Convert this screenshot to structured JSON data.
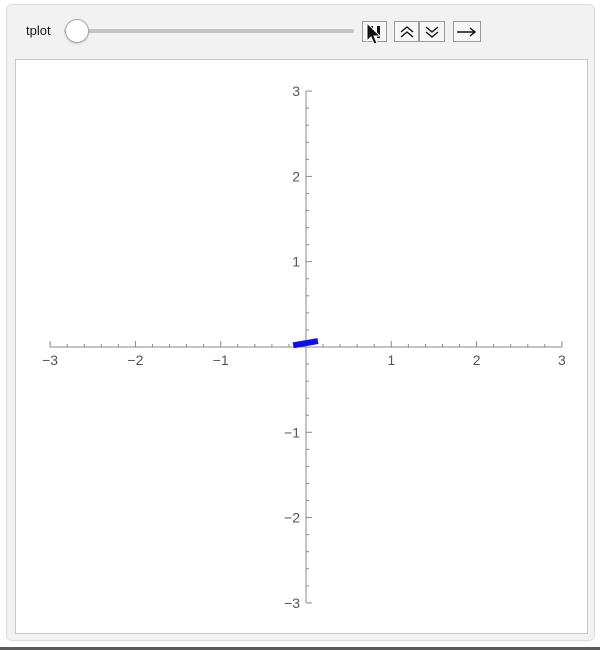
{
  "controls": {
    "variable_label": "tplot",
    "slider_value": 0
  },
  "buttons": [
    {
      "name": "pause-button",
      "icon": "pause-icon"
    },
    {
      "name": "faster-button",
      "icon": "double-chevron-up-icon"
    },
    {
      "name": "slower-button",
      "icon": "double-chevron-down-icon"
    },
    {
      "name": "direction-button",
      "icon": "right-arrow-icon"
    }
  ],
  "chart_data": {
    "type": "line",
    "x_range": [
      -3,
      3
    ],
    "y_range": [
      -3,
      3
    ],
    "x_ticks": [
      {
        "value": -3,
        "label": "−3"
      },
      {
        "value": -2,
        "label": "−2"
      },
      {
        "value": -1,
        "label": "−1"
      },
      {
        "value": 1,
        "label": "1"
      },
      {
        "value": 2,
        "label": "2"
      },
      {
        "value": 3,
        "label": "3"
      }
    ],
    "y_ticks": [
      {
        "value": 3,
        "label": "3"
      },
      {
        "value": 2,
        "label": "2"
      },
      {
        "value": 1,
        "label": "1"
      },
      {
        "value": -1,
        "label": "−1"
      },
      {
        "value": -2,
        "label": "−2"
      },
      {
        "value": -3,
        "label": "−3"
      }
    ],
    "series": [
      {
        "color": "#1010e6",
        "points": [
          [
            -0.15,
            0.02
          ],
          [
            0.14,
            0.07
          ]
        ]
      }
    ]
  }
}
